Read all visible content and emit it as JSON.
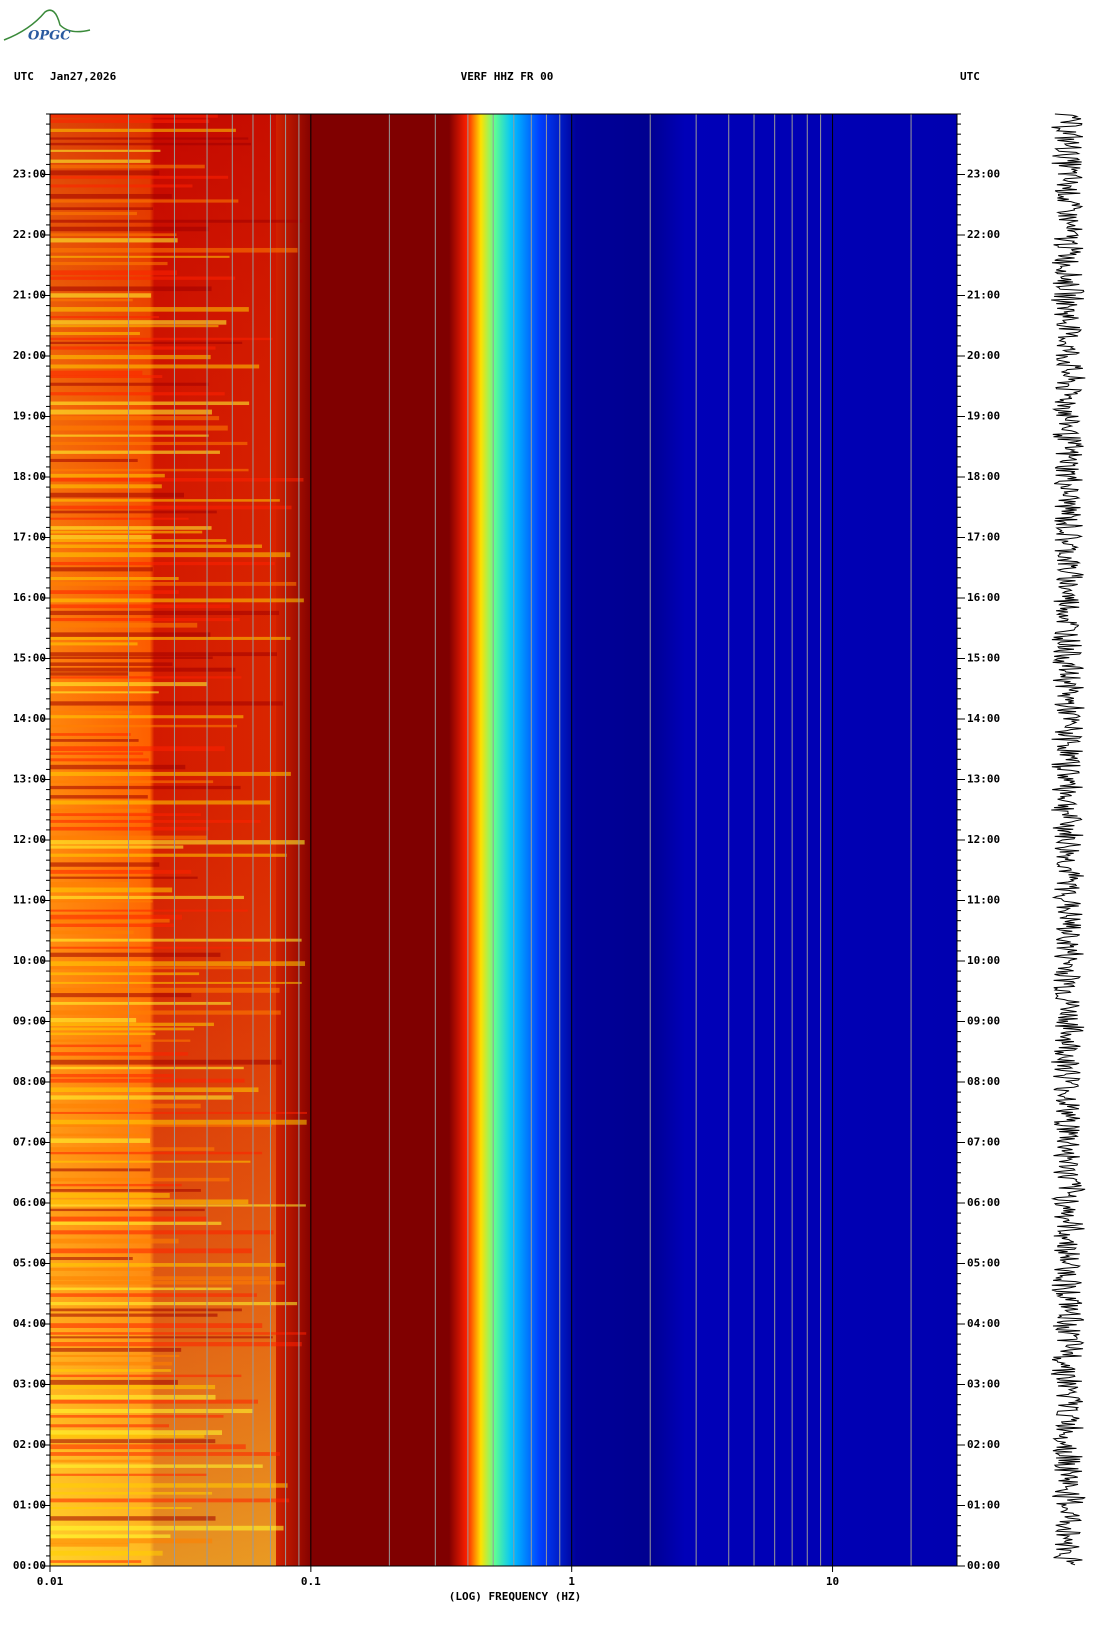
{
  "logo": "OPGC",
  "chart_data": {
    "type": "spectrogram",
    "title": "VERF HHZ FR 00",
    "date": "Jan27,2026",
    "time_zone_left": "UTC",
    "time_zone_right": "UTC",
    "x_label": "(LOG) FREQUENCY (HZ)",
    "x_log": true,
    "xlim": [
      0.01,
      30
    ],
    "xticks": [
      0.01,
      0.1,
      1,
      10
    ],
    "ylim": [
      0,
      24
    ],
    "yticks": [
      {
        "value": 0,
        "label": "00:00"
      },
      {
        "value": 1,
        "label": "01:00"
      },
      {
        "value": 2,
        "label": "02:00"
      },
      {
        "value": 3,
        "label": "03:00"
      },
      {
        "value": 4,
        "label": "04:00"
      },
      {
        "value": 5,
        "label": "05:00"
      },
      {
        "value": 6,
        "label": "06:00"
      },
      {
        "value": 7,
        "label": "07:00"
      },
      {
        "value": 8,
        "label": "08:00"
      },
      {
        "value": 9,
        "label": "09:00"
      },
      {
        "value": 10,
        "label": "10:00"
      },
      {
        "value": 11,
        "label": "11:00"
      },
      {
        "value": 12,
        "label": "12:00"
      },
      {
        "value": 13,
        "label": "13:00"
      },
      {
        "value": 14,
        "label": "14:00"
      },
      {
        "value": 15,
        "label": "15:00"
      },
      {
        "value": 16,
        "label": "16:00"
      },
      {
        "value": 17,
        "label": "17:00"
      },
      {
        "value": 18,
        "label": "18:00"
      },
      {
        "value": 19,
        "label": "19:00"
      },
      {
        "value": 20,
        "label": "20:00"
      },
      {
        "value": 21,
        "label": "21:00"
      },
      {
        "value": 22,
        "label": "22:00"
      },
      {
        "value": 23,
        "label": "23:00"
      }
    ]
  }
}
